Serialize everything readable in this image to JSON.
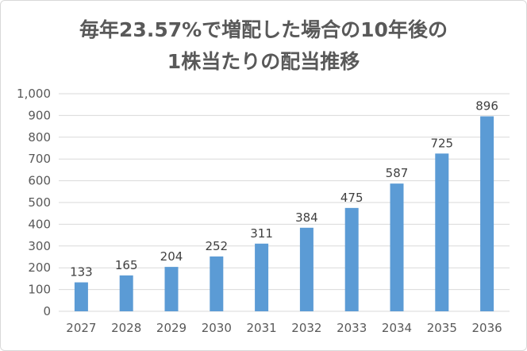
{
  "chart_data": {
    "type": "bar",
    "title": [
      "毎年23.57%で増配した場合の10年後の",
      "1株当たりの配当推移"
    ],
    "categories": [
      "2027",
      "2028",
      "2029",
      "2030",
      "2031",
      "2032",
      "2033",
      "2034",
      "2035",
      "2036"
    ],
    "values": [
      133,
      165,
      204,
      252,
      311,
      384,
      475,
      587,
      725,
      896
    ],
    "data_labels": [
      "133",
      "165",
      "204",
      "252",
      "311",
      "384",
      "475",
      "587",
      "725",
      "896"
    ],
    "xlabel": "",
    "ylabel": "",
    "ylim": [
      0,
      1000
    ],
    "yticks": [
      0,
      100,
      200,
      300,
      400,
      500,
      600,
      700,
      800,
      900,
      1000
    ],
    "ytick_labels": [
      "0",
      "100",
      "200",
      "300",
      "400",
      "500",
      "600",
      "700",
      "800",
      "900",
      "1,000"
    ],
    "grid": true,
    "legend": "none",
    "bar_color": "#5b9bd5"
  }
}
